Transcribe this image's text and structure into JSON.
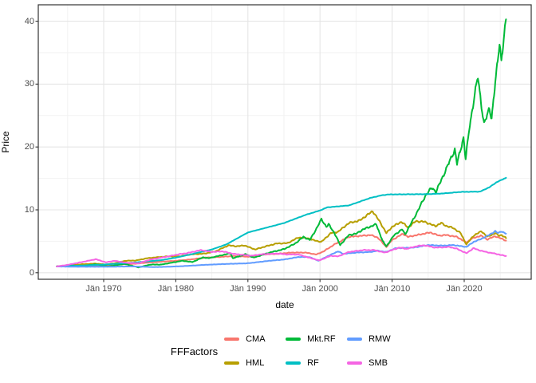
{
  "figure": {
    "y_axis_title": "Price",
    "x_axis_title": "date"
  },
  "legend": {
    "title": "FFFactors",
    "items": [
      {
        "label": "CMA",
        "color": "#F8766D"
      },
      {
        "label": "HML",
        "color": "#B79F00"
      },
      {
        "label": "Mkt.RF",
        "color": "#00BA38"
      },
      {
        "label": "RF",
        "color": "#00BFC4"
      },
      {
        "label": "RMW",
        "color": "#619CFF"
      },
      {
        "label": "SMB",
        "color": "#F564E3"
      }
    ]
  },
  "chart_data": {
    "type": "line",
    "title": "",
    "xlabel": "date",
    "ylabel": "Price",
    "grid": true,
    "legend_position": "bottom",
    "x_anchor_year": 1970,
    "xlim_years": [
      1960.9,
      2029.3
    ],
    "ylim": [
      -1,
      42.7
    ],
    "x_ticks": [
      {
        "year": 1970,
        "label": "Jän 1970"
      },
      {
        "year": 1980,
        "label": "Jän 1980"
      },
      {
        "year": 1990,
        "label": "Jän 1990"
      },
      {
        "year": 2000,
        "label": "Jän 2000"
      },
      {
        "year": 2010,
        "label": "Jän 2010"
      },
      {
        "year": 2020,
        "label": "Jän 2020"
      }
    ],
    "x_minor_years": [
      1965,
      1975,
      1985,
      1995,
      2005,
      2015,
      2025
    ],
    "y_ticks": [
      {
        "value": 0,
        "label": "0"
      },
      {
        "value": 10,
        "label": "10"
      },
      {
        "value": 20,
        "label": "20"
      },
      {
        "value": 30,
        "label": "30"
      },
      {
        "value": 40,
        "label": "40"
      }
    ],
    "y_minor_values": [
      5,
      15,
      25,
      35
    ],
    "series": [
      {
        "name": "CMA",
        "color": "#F8766D",
        "noise": 0.018,
        "points": [
          [
            1963.5,
            1.0
          ],
          [
            1965,
            1.05
          ],
          [
            1967,
            1.1
          ],
          [
            1969,
            1.15
          ],
          [
            1970,
            1.15
          ],
          [
            1972,
            1.3
          ],
          [
            1974,
            1.4
          ],
          [
            1976,
            1.6
          ],
          [
            1978,
            1.75
          ],
          [
            1980,
            1.9
          ],
          [
            1982,
            2.1
          ],
          [
            1984,
            2.4
          ],
          [
            1986,
            2.5
          ],
          [
            1988,
            2.65
          ],
          [
            1990,
            2.55
          ],
          [
            1992,
            2.9
          ],
          [
            1994,
            3.0
          ],
          [
            1996,
            3.2
          ],
          [
            1998,
            3.2
          ],
          [
            1999.5,
            2.9
          ],
          [
            2000.5,
            3.4
          ],
          [
            2002,
            4.5
          ],
          [
            2004,
            5.7
          ],
          [
            2005,
            5.8
          ],
          [
            2007,
            6.0
          ],
          [
            2008,
            5.6
          ],
          [
            2009.2,
            4.1
          ],
          [
            2010,
            5.2
          ],
          [
            2011.5,
            6.2
          ],
          [
            2012.2,
            5.7
          ],
          [
            2013.5,
            6.0
          ],
          [
            2015.3,
            6.4
          ],
          [
            2016.5,
            5.9
          ],
          [
            2017.5,
            6.0
          ],
          [
            2019,
            5.7
          ],
          [
            2020.3,
            4.8
          ],
          [
            2021,
            5.4
          ],
          [
            2022.3,
            5.9
          ],
          [
            2023.2,
            5.3
          ],
          [
            2024.3,
            5.8
          ],
          [
            2025,
            5.5
          ],
          [
            2025.8,
            5.1
          ]
        ]
      },
      {
        "name": "HML",
        "color": "#B79F00",
        "noise": 0.02,
        "points": [
          [
            1963.5,
            1.0
          ],
          [
            1965,
            1.15
          ],
          [
            1967,
            1.35
          ],
          [
            1968.9,
            1.45
          ],
          [
            1970.3,
            1.3
          ],
          [
            1971.5,
            1.5
          ],
          [
            1973,
            1.9
          ],
          [
            1974.5,
            1.95
          ],
          [
            1976,
            2.3
          ],
          [
            1977.8,
            2.5
          ],
          [
            1979,
            2.6
          ],
          [
            1980.5,
            2.6
          ],
          [
            1982,
            2.9
          ],
          [
            1984,
            3.05
          ],
          [
            1985.5,
            3.4
          ],
          [
            1987.3,
            4.35
          ],
          [
            1988.5,
            4.2
          ],
          [
            1989.5,
            4.35
          ],
          [
            1991,
            3.7
          ],
          [
            1992.5,
            4.2
          ],
          [
            1994,
            4.65
          ],
          [
            1995.5,
            4.7
          ],
          [
            1997,
            5.6
          ],
          [
            1998.3,
            5.5
          ],
          [
            1999,
            5.2
          ],
          [
            2000.2,
            4.9
          ],
          [
            2001.5,
            6.3
          ],
          [
            2002.5,
            6.5
          ],
          [
            2004,
            7.9
          ],
          [
            2005.5,
            8.3
          ],
          [
            2007.3,
            9.8
          ],
          [
            2008.3,
            8.1
          ],
          [
            2009.2,
            6.3
          ],
          [
            2010,
            7.3
          ],
          [
            2011.3,
            8.1
          ],
          [
            2012.2,
            7.2
          ],
          [
            2013.3,
            8.2
          ],
          [
            2014.5,
            8.1
          ],
          [
            2016,
            7.4
          ],
          [
            2016.8,
            7.9
          ],
          [
            2017.5,
            7.45
          ],
          [
            2018.5,
            7.1
          ],
          [
            2019.5,
            6.3
          ],
          [
            2020.3,
            4.5
          ],
          [
            2021.3,
            5.9
          ],
          [
            2022.4,
            6.6
          ],
          [
            2023.2,
            5.7
          ],
          [
            2024.3,
            6.3
          ],
          [
            2024.8,
            5.9
          ],
          [
            2025.2,
            6.0
          ],
          [
            2025.8,
            5.5
          ]
        ]
      },
      {
        "name": "Mkt.RF",
        "color": "#00BA38",
        "noise": 0.022,
        "points": [
          [
            1963.5,
            1.0
          ],
          [
            1965.5,
            1.2
          ],
          [
            1966.8,
            1.05
          ],
          [
            1968.9,
            1.35
          ],
          [
            1970.5,
            1.0
          ],
          [
            1972.9,
            1.4
          ],
          [
            1974.8,
            0.85
          ],
          [
            1976.5,
            1.3
          ],
          [
            1978,
            1.3
          ],
          [
            1980.9,
            1.9
          ],
          [
            1982.3,
            1.7
          ],
          [
            1983.8,
            2.45
          ],
          [
            1984.5,
            2.3
          ],
          [
            1987.6,
            3.1
          ],
          [
            1987.9,
            2.3
          ],
          [
            1989.7,
            2.95
          ],
          [
            1990.8,
            2.4
          ],
          [
            1993,
            3.2
          ],
          [
            1995,
            3.75
          ],
          [
            1996.5,
            4.6
          ],
          [
            1997.7,
            5.7
          ],
          [
            1998.6,
            5.2
          ],
          [
            1999.5,
            7.0
          ],
          [
            2000.2,
            8.5
          ],
          [
            2000.9,
            7.3
          ],
          [
            2001.2,
            7.7
          ],
          [
            2002,
            6.3
          ],
          [
            2002.8,
            4.4
          ],
          [
            2004,
            6.0
          ],
          [
            2005,
            6.2
          ],
          [
            2006,
            6.9
          ],
          [
            2007.8,
            7.7
          ],
          [
            2008.7,
            5.0
          ],
          [
            2009.2,
            4.2
          ],
          [
            2010.3,
            6.0
          ],
          [
            2011.4,
            6.9
          ],
          [
            2011.8,
            6.1
          ],
          [
            2013,
            8.6
          ],
          [
            2014.7,
            12.4
          ],
          [
            2015.5,
            13.5
          ],
          [
            2016.1,
            12.9
          ],
          [
            2017,
            15.2
          ],
          [
            2018.7,
            19.6
          ],
          [
            2019.0,
            17.3
          ],
          [
            2019.9,
            21.5
          ],
          [
            2020.2,
            18.0
          ],
          [
            2020.7,
            23.0
          ],
          [
            2021.9,
            31.3
          ],
          [
            2022.4,
            26.5
          ],
          [
            2022.75,
            23.5
          ],
          [
            2023.5,
            26.3
          ],
          [
            2023.8,
            24.4
          ],
          [
            2024.9,
            36.8
          ],
          [
            2025.15,
            33.5
          ],
          [
            2025.8,
            40.3
          ]
        ]
      },
      {
        "name": "RF",
        "color": "#00BFC4",
        "noise": 0.003,
        "points": [
          [
            1963.5,
            1.0
          ],
          [
            1966,
            1.1
          ],
          [
            1970,
            1.3
          ],
          [
            1974,
            1.6
          ],
          [
            1978,
            2.0
          ],
          [
            1980,
            2.4
          ],
          [
            1982,
            2.9
          ],
          [
            1985,
            3.7
          ],
          [
            1987,
            4.5
          ],
          [
            1990,
            6.4
          ],
          [
            1993,
            7.3
          ],
          [
            1995,
            7.9
          ],
          [
            1998,
            9.2
          ],
          [
            2000,
            9.9
          ],
          [
            2001,
            10.4
          ],
          [
            2004,
            10.7
          ],
          [
            2007,
            11.9
          ],
          [
            2008.5,
            12.3
          ],
          [
            2009.5,
            12.45
          ],
          [
            2015,
            12.5
          ],
          [
            2017,
            12.6
          ],
          [
            2019.5,
            12.85
          ],
          [
            2022.2,
            12.9
          ],
          [
            2023.5,
            13.6
          ],
          [
            2024.5,
            14.4
          ],
          [
            2025.8,
            15.1
          ]
        ]
      },
      {
        "name": "RMW",
        "color": "#619CFF",
        "noise": 0.016,
        "points": [
          [
            1963.5,
            1.0
          ],
          [
            1966,
            0.95
          ],
          [
            1970,
            0.95
          ],
          [
            1974,
            1.0
          ],
          [
            1977,
            0.9
          ],
          [
            1979,
            0.95
          ],
          [
            1981,
            1.05
          ],
          [
            1984,
            1.25
          ],
          [
            1987,
            1.4
          ],
          [
            1990,
            1.5
          ],
          [
            1993,
            1.9
          ],
          [
            1995,
            2.1
          ],
          [
            1997,
            2.5
          ],
          [
            1998.5,
            2.5
          ],
          [
            1999.8,
            1.9
          ],
          [
            2001,
            2.6
          ],
          [
            2002.5,
            3.4
          ],
          [
            2003.2,
            3.0
          ],
          [
            2005,
            3.2
          ],
          [
            2007,
            3.3
          ],
          [
            2008,
            3.5
          ],
          [
            2009.2,
            3.3
          ],
          [
            2010.5,
            3.9
          ],
          [
            2013,
            4.0
          ],
          [
            2015,
            4.4
          ],
          [
            2017,
            4.3
          ],
          [
            2018.5,
            4.4
          ],
          [
            2020.3,
            4.1
          ],
          [
            2021.3,
            4.9
          ],
          [
            2022.2,
            5.3
          ],
          [
            2023.3,
            5.9
          ],
          [
            2024.3,
            6.6
          ],
          [
            2024.7,
            6.3
          ],
          [
            2025.1,
            6.6
          ],
          [
            2025.8,
            6.2
          ]
        ]
      },
      {
        "name": "SMB",
        "color": "#F564E3",
        "noise": 0.02,
        "points": [
          [
            1963.5,
            1.0
          ],
          [
            1965,
            1.25
          ],
          [
            1967,
            1.7
          ],
          [
            1968.9,
            2.15
          ],
          [
            1970.3,
            1.65
          ],
          [
            1971.5,
            1.9
          ],
          [
            1973,
            1.6
          ],
          [
            1974.8,
            1.5
          ],
          [
            1976.5,
            2.1
          ],
          [
            1978.5,
            2.5
          ],
          [
            1980.5,
            2.95
          ],
          [
            1981.5,
            3.1
          ],
          [
            1983.5,
            3.6
          ],
          [
            1985,
            3.3
          ],
          [
            1986.5,
            3.4
          ],
          [
            1988,
            3.0
          ],
          [
            1990.5,
            2.7
          ],
          [
            1992,
            2.95
          ],
          [
            1994,
            3.05
          ],
          [
            1995.5,
            2.9
          ],
          [
            1997,
            2.9
          ],
          [
            1998.5,
            2.4
          ],
          [
            1999.9,
            1.95
          ],
          [
            2001.5,
            2.7
          ],
          [
            2002.5,
            2.6
          ],
          [
            2004,
            3.3
          ],
          [
            2006,
            3.6
          ],
          [
            2007.5,
            3.6
          ],
          [
            2009,
            3.2
          ],
          [
            2011,
            4.0
          ],
          [
            2012,
            3.8
          ],
          [
            2013.5,
            4.25
          ],
          [
            2014.5,
            4.35
          ],
          [
            2016,
            4.0
          ],
          [
            2018,
            4.1
          ],
          [
            2019,
            3.8
          ],
          [
            2020.3,
            3.1
          ],
          [
            2021.3,
            3.9
          ],
          [
            2022,
            3.6
          ],
          [
            2023,
            3.3
          ],
          [
            2024,
            3.1
          ],
          [
            2025.8,
            2.65
          ]
        ]
      }
    ]
  }
}
